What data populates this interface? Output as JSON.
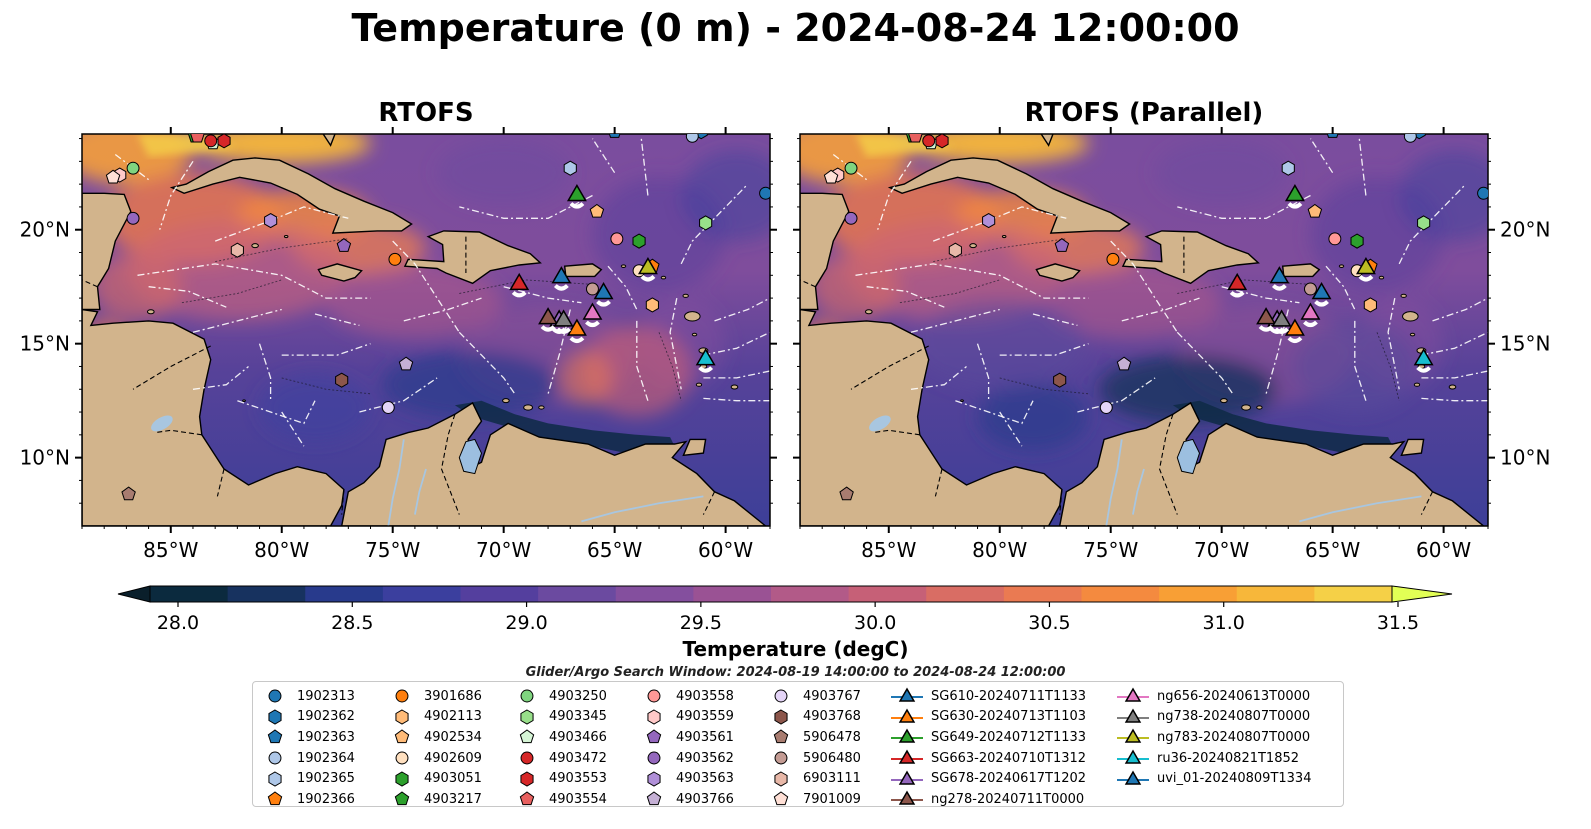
{
  "title": "Temperature (0 m) - 2024-08-24 12:00:00",
  "panels": [
    {
      "title": "RTOFS"
    },
    {
      "title": "RTOFS (Parallel)"
    }
  ],
  "axes": {
    "lon_ticks": [
      "85°W",
      "80°W",
      "75°W",
      "70°W",
      "65°W",
      "60°W"
    ],
    "lon_values": [
      -85,
      -80,
      -75,
      -70,
      -65,
      -60
    ],
    "lat_ticks": [
      "20°N",
      "15°N",
      "10°N"
    ],
    "lat_values": [
      20,
      15,
      10
    ],
    "lon_range": [
      -89,
      -58
    ],
    "lat_range": [
      7,
      24.2
    ]
  },
  "colorbar": {
    "label": "Temperature (degC)",
    "ticks": [
      "28.0",
      "28.5",
      "29.0",
      "29.5",
      "30.0",
      "30.5",
      "31.0",
      "31.5"
    ],
    "range": [
      28.0,
      31.5
    ],
    "colors": [
      "#0b2a3e",
      "#17325f",
      "#283a8c",
      "#3b3f9e",
      "#543f9e",
      "#6b4aa0",
      "#844f9e",
      "#9a5294",
      "#b25a88",
      "#c66077",
      "#d96d64",
      "#ea7a52",
      "#f48a3f",
      "#f89f35",
      "#f7b73a",
      "#f5d047"
    ],
    "under_color": "#0a1f2b",
    "over_color": "#e2ff55"
  },
  "search_window": "Glider/Argo Search Window: 2024-08-19 14:00:00 to 2024-08-24 12:00:00",
  "legend": [
    {
      "label": "1902313",
      "marker": "circle",
      "color": "#1f77b4"
    },
    {
      "label": "1902362",
      "marker": "hexagon",
      "color": "#1f77b4"
    },
    {
      "label": "1902363",
      "marker": "pentagon",
      "color": "#1f77b4"
    },
    {
      "label": "1902364",
      "marker": "circle",
      "color": "#aec7e8"
    },
    {
      "label": "1902365",
      "marker": "hexagon",
      "color": "#aec7e8"
    },
    {
      "label": "1902366",
      "marker": "pentagon",
      "color": "#ff7f0e"
    },
    {
      "label": "3901686",
      "marker": "circle",
      "color": "#ff7f0e"
    },
    {
      "label": "4902113",
      "marker": "hexagon",
      "color": "#ffbb78"
    },
    {
      "label": "4902534",
      "marker": "pentagon",
      "color": "#ffbb78"
    },
    {
      "label": "4902609",
      "marker": "circle",
      "color": "#ffe0c0"
    },
    {
      "label": "4903051",
      "marker": "hexagon",
      "color": "#2ca02c"
    },
    {
      "label": "4903217",
      "marker": "pentagon",
      "color": "#2ca02c"
    },
    {
      "label": "4903250",
      "marker": "circle",
      "color": "#7fd47f"
    },
    {
      "label": "4903345",
      "marker": "hexagon",
      "color": "#98df8a"
    },
    {
      "label": "4903466",
      "marker": "pentagon",
      "color": "#d6f5d6"
    },
    {
      "label": "4903472",
      "marker": "circle",
      "color": "#d62728"
    },
    {
      "label": "4903553",
      "marker": "hexagon",
      "color": "#d62728"
    },
    {
      "label": "4903554",
      "marker": "pentagon",
      "color": "#e8605f"
    },
    {
      "label": "4903558",
      "marker": "circle",
      "color": "#ff9896"
    },
    {
      "label": "4903559",
      "marker": "hexagon",
      "color": "#ffc9c8"
    },
    {
      "label": "4903561",
      "marker": "pentagon",
      "color": "#9467bd"
    },
    {
      "label": "4903562",
      "marker": "circle",
      "color": "#9467bd"
    },
    {
      "label": "4903563",
      "marker": "hexagon",
      "color": "#b08fd8"
    },
    {
      "label": "4903766",
      "marker": "pentagon",
      "color": "#c5b0d5"
    },
    {
      "label": "4903767",
      "marker": "circle",
      "color": "#e4d4f7"
    },
    {
      "label": "4903768",
      "marker": "hexagon",
      "color": "#8c564b"
    },
    {
      "label": "5906478",
      "marker": "pentagon",
      "color": "#a87c70"
    },
    {
      "label": "5906480",
      "marker": "circle",
      "color": "#c49c94"
    },
    {
      "label": "6903111",
      "marker": "hexagon",
      "color": "#e8b8a8"
    },
    {
      "label": "7901009",
      "marker": "pentagon",
      "color": "#ffe0d6"
    },
    {
      "label": "SG610-20240711T1133",
      "marker": "triangle",
      "color": "#1f77b4"
    },
    {
      "label": "SG630-20240713T1103",
      "marker": "triangle",
      "color": "#ff7f0e"
    },
    {
      "label": "SG649-20240712T1133",
      "marker": "triangle",
      "color": "#2ca02c"
    },
    {
      "label": "SG663-20240710T1312",
      "marker": "triangle",
      "color": "#d62728"
    },
    {
      "label": "SG678-20240617T1202",
      "marker": "triangle",
      "color": "#9467bd"
    },
    {
      "label": "ng278-20240711T0000",
      "marker": "triangle",
      "color": "#8c564b"
    },
    {
      "label": "ng656-20240613T0000",
      "marker": "triangle",
      "color": "#e377c2"
    },
    {
      "label": "ng738-20240807T0000",
      "marker": "triangle",
      "color": "#7f7f7f"
    },
    {
      "label": "ng783-20240807T0000",
      "marker": "triangle",
      "color": "#bcbd22"
    },
    {
      "label": "ru36-20240821T1852",
      "marker": "triangle",
      "color": "#17becf"
    },
    {
      "label": "uvi_01-20240809T1334",
      "marker": "triangle",
      "color": "#1f77b4"
    }
  ],
  "floats": [
    {
      "id": "1902313",
      "lon": -58.2,
      "lat": 21.6,
      "marker": "circle",
      "color": "#1f77b4"
    },
    {
      "id": "1902362",
      "lon": -61.1,
      "lat": 24.3,
      "marker": "hexagon",
      "color": "#1f77b4"
    },
    {
      "id": "1902363",
      "lon": -65.0,
      "lat": 24.3,
      "marker": "pentagon",
      "color": "#1f77b4"
    },
    {
      "id": "1902364",
      "lon": -61.5,
      "lat": 24.1,
      "marker": "circle",
      "color": "#aec7e8"
    },
    {
      "id": "1902365",
      "lon": -67.0,
      "lat": 22.7,
      "marker": "hexagon",
      "color": "#aec7e8"
    },
    {
      "id": "1902366",
      "lon": -63.3,
      "lat": 18.4,
      "marker": "pentagon",
      "color": "#ff7f0e"
    },
    {
      "id": "3901686",
      "lon": -74.9,
      "lat": 18.7,
      "marker": "circle",
      "color": "#ff7f0e"
    },
    {
      "id": "4902113",
      "lon": -63.3,
      "lat": 16.7,
      "marker": "hexagon",
      "color": "#ffbb78"
    },
    {
      "id": "4902534",
      "lon": -65.8,
      "lat": 20.8,
      "marker": "pentagon",
      "color": "#ffbb78"
    },
    {
      "id": "4902609",
      "lon": -63.9,
      "lat": 18.2,
      "marker": "circle",
      "color": "#ffe0c0"
    },
    {
      "id": "4903051",
      "lon": -63.9,
      "lat": 19.5,
      "marker": "hexagon",
      "color": "#2ca02c"
    },
    {
      "id": "4903217",
      "lon": -83.9,
      "lat": 24.1,
      "marker": "pentagon",
      "color": "#2ca02c"
    },
    {
      "id": "4903250",
      "lon": -86.7,
      "lat": 22.7,
      "marker": "circle",
      "color": "#7fd47f"
    },
    {
      "id": "4903345",
      "lon": -60.9,
      "lat": 20.3,
      "marker": "hexagon",
      "color": "#98df8a"
    },
    {
      "id": "4903466",
      "lon": -83.1,
      "lat": 23.8,
      "marker": "pentagon",
      "color": "#d6f5d6"
    },
    {
      "id": "4903472",
      "lon": -83.2,
      "lat": 23.9,
      "marker": "circle",
      "color": "#d62728"
    },
    {
      "id": "4903553",
      "lon": -82.6,
      "lat": 23.9,
      "marker": "hexagon",
      "color": "#d62728"
    },
    {
      "id": "4903554",
      "lon": -83.8,
      "lat": 24.1,
      "marker": "pentagon",
      "color": "#e8605f"
    },
    {
      "id": "4903558",
      "lon": -64.9,
      "lat": 19.6,
      "marker": "circle",
      "color": "#ff9896"
    },
    {
      "id": "4903559",
      "lon": -87.3,
      "lat": 22.4,
      "marker": "hexagon",
      "color": "#ffc9c8"
    },
    {
      "id": "4903561",
      "lon": -77.2,
      "lat": 19.3,
      "marker": "pentagon",
      "color": "#9467bd"
    },
    {
      "id": "4903562",
      "lon": -86.7,
      "lat": 20.5,
      "marker": "circle",
      "color": "#9467bd"
    },
    {
      "id": "4903563",
      "lon": -80.5,
      "lat": 20.4,
      "marker": "hexagon",
      "color": "#b08fd8"
    },
    {
      "id": "4903766",
      "lon": -74.4,
      "lat": 14.1,
      "marker": "pentagon",
      "color": "#c5b0d5"
    },
    {
      "id": "4903767",
      "lon": -75.2,
      "lat": 12.2,
      "marker": "circle",
      "color": "#e4d4f7"
    },
    {
      "id": "4903768",
      "lon": -77.3,
      "lat": 13.4,
      "marker": "hexagon",
      "color": "#8c564b"
    },
    {
      "id": "5906478",
      "lon": -86.9,
      "lat": 8.4,
      "marker": "pentagon",
      "color": "#a87c70"
    },
    {
      "id": "5906480",
      "lon": -66.0,
      "lat": 17.4,
      "marker": "circle",
      "color": "#c49c94"
    },
    {
      "id": "6903111",
      "lon": -82.0,
      "lat": 19.1,
      "marker": "hexagon",
      "color": "#e8b8a8"
    },
    {
      "id": "7901009",
      "lon": -87.6,
      "lat": 22.3,
      "marker": "pentagon",
      "color": "#ffe0d6"
    }
  ],
  "gliders": [
    {
      "id": "SG610-20240711T1133",
      "lon": -65.5,
      "lat": 17.2,
      "color": "#1f77b4"
    },
    {
      "id": "SG630-20240713T1103",
      "lon": -66.7,
      "lat": 15.6,
      "color": "#ff7f0e"
    },
    {
      "id": "SG649-20240712T1133",
      "lon": -66.7,
      "lat": 21.5,
      "color": "#2ca02c"
    },
    {
      "id": "SG663-20240710T1312",
      "lon": -69.3,
      "lat": 17.6,
      "color": "#d62728"
    },
    {
      "id": "SG678-20240617T1202",
      "lon": -67.5,
      "lat": 16.0,
      "color": "#9467bd"
    },
    {
      "id": "ng278-20240711T0000",
      "lon": -68.0,
      "lat": 16.1,
      "color": "#8c564b"
    },
    {
      "id": "ng656-20240613T0000",
      "lon": -66.0,
      "lat": 16.3,
      "color": "#e377c2"
    },
    {
      "id": "ng738-20240807T0000",
      "lon": -67.3,
      "lat": 16.0,
      "color": "#7f7f7f"
    },
    {
      "id": "ng783-20240807T0000",
      "lon": -63.5,
      "lat": 18.3,
      "color": "#bcbd22"
    },
    {
      "id": "ru36-20240821T1852",
      "lon": -60.9,
      "lat": 14.3,
      "color": "#17becf"
    },
    {
      "id": "uvi_01-20240809T1334",
      "lon": -67.4,
      "lat": 17.9,
      "color": "#1f77b4"
    }
  ]
}
